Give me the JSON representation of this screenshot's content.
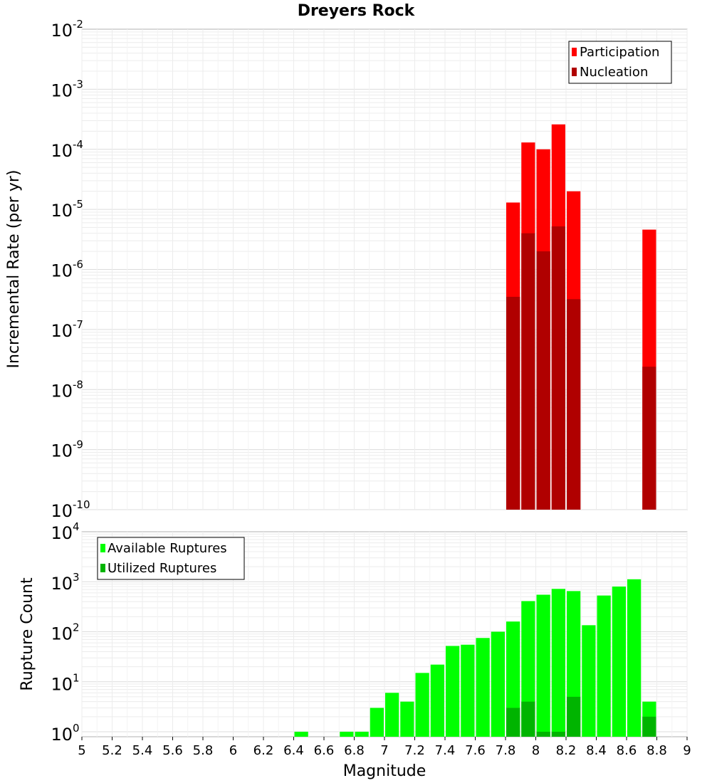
{
  "chart_data": [
    {
      "type": "bar",
      "title": "Dreyers Rock",
      "ylabel": "Incremental Rate (per yr)",
      "yscale": "log",
      "ylim_exponent": [
        -10,
        -2
      ],
      "ytick_exponents": [
        "-10",
        "-9",
        "-8",
        "-7",
        "-6",
        "-5",
        "-4",
        "-3",
        "-2"
      ],
      "legend_position": "top-right",
      "series": [
        {
          "name": "Participation",
          "color": "#ff0000",
          "x": [
            7.85,
            7.95,
            8.05,
            8.15,
            8.25,
            8.75
          ],
          "values": [
            1.3e-05,
            0.00013,
            0.0001,
            0.00026,
            2e-05,
            4.6e-06
          ]
        },
        {
          "name": "Nucleation",
          "color": "#b00000",
          "x": [
            7.85,
            7.95,
            8.05,
            8.15,
            8.25,
            8.75
          ],
          "values": [
            3.5e-07,
            4e-06,
            2e-06,
            5.2e-06,
            3.2e-07,
            2.4e-08
          ]
        }
      ]
    },
    {
      "type": "bar",
      "ylabel": "Rupture Count",
      "xlabel": "Magnitude",
      "yscale": "log",
      "ylim_exponent": [
        0,
        4
      ],
      "ytick_exponents": [
        "0",
        "1",
        "2",
        "3",
        "4"
      ],
      "xlim": [
        5,
        9
      ],
      "xtick_labels": [
        "5",
        "5.2",
        "5.4",
        "5.6",
        "5.8",
        "6",
        "6.2",
        "6.4",
        "6.6",
        "6.8",
        "7",
        "7.2",
        "7.4",
        "7.6",
        "7.8",
        "8",
        "8.2",
        "8.4",
        "8.6",
        "8.8",
        "9"
      ],
      "legend_position": "top-left",
      "series": [
        {
          "name": "Available Ruptures",
          "color": "#00ff00",
          "x": [
            6.45,
            6.75,
            6.85,
            6.95,
            7.05,
            7.15,
            7.25,
            7.35,
            7.45,
            7.55,
            7.65,
            7.75,
            7.85,
            7.95,
            8.05,
            8.15,
            8.25,
            8.35,
            8.45,
            8.55,
            8.65,
            8.75
          ],
          "values": [
            1,
            1,
            1,
            3,
            6,
            4,
            15,
            22,
            52,
            55,
            75,
            100,
            160,
            410,
            550,
            720,
            650,
            135,
            530,
            800,
            1120,
            4
          ]
        },
        {
          "name": "Utilized Ruptures",
          "color": "#00b400",
          "x": [
            7.85,
            7.95,
            8.05,
            8.15,
            8.25,
            8.75
          ],
          "values": [
            3,
            4,
            1,
            1,
            5,
            2
          ]
        }
      ]
    }
  ]
}
